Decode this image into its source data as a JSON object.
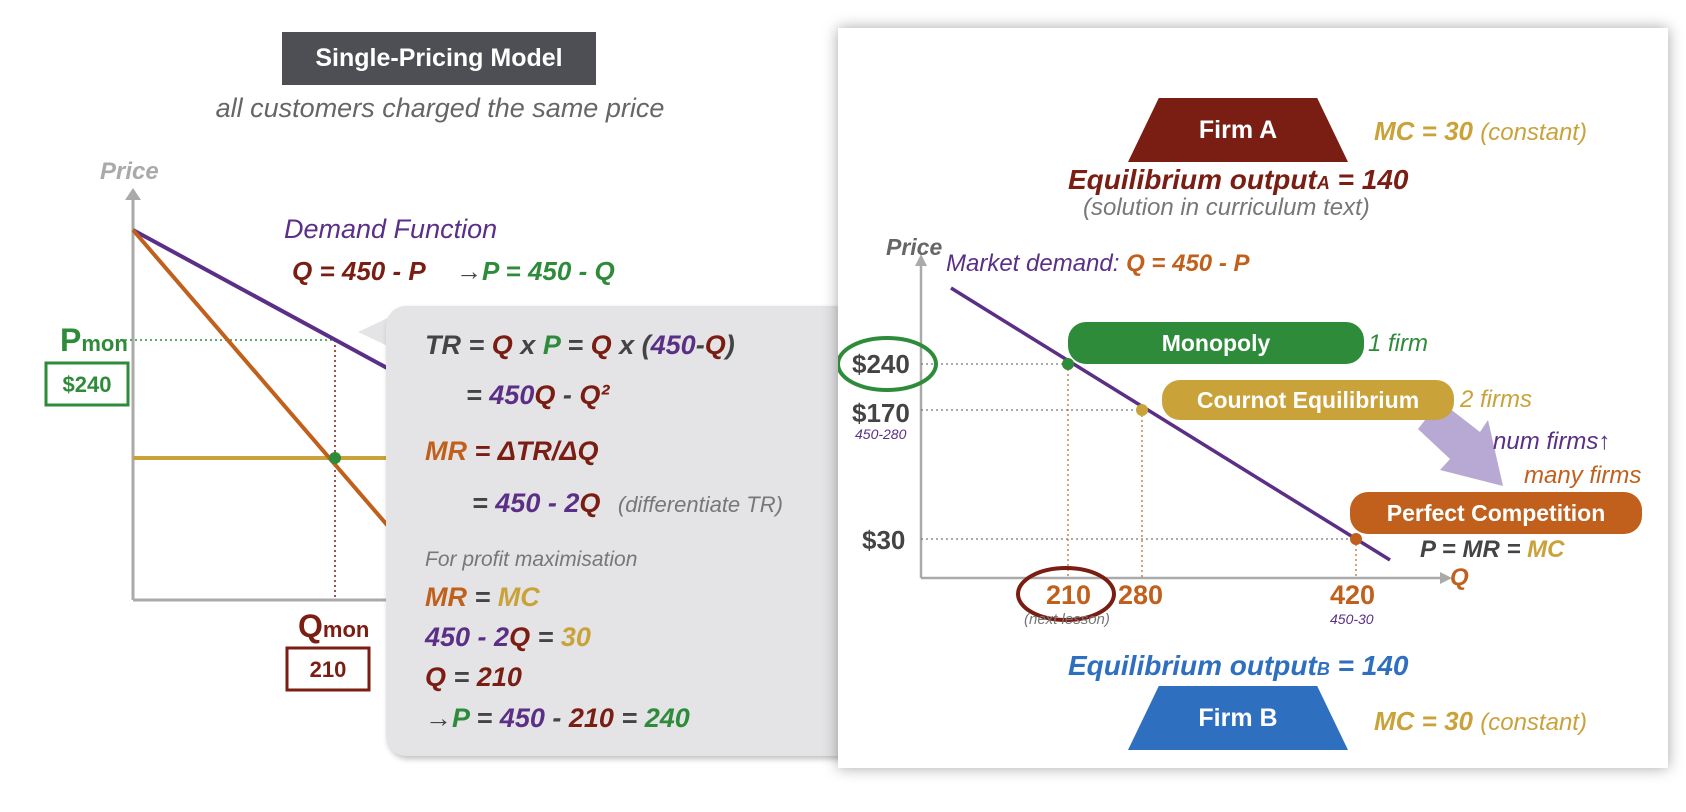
{
  "left": {
    "title": "Single-Pricing Model",
    "subtitle": "all customers charged the same price",
    "price_axis": "Price",
    "demand_heading": "Demand Function",
    "demand_eq1": "Q = 450 - P",
    "demand_arrow": "→",
    "demand_eq2": "P = 450 - Q",
    "pmon_letter": "P",
    "pmon_sub": "mon",
    "pmon_value": "$240",
    "qmon_letter": "Q",
    "qmon_sub": "mon",
    "qmon_value": "210"
  },
  "callout": {
    "tr_line": [
      "TR = ",
      "Q",
      " x ",
      "P",
      " = ",
      "Q",
      " x (",
      "450",
      "-",
      "Q",
      ")"
    ],
    "tr_line2": [
      "= ",
      "450",
      "Q",
      " - ",
      "Q²"
    ],
    "mr_line": [
      "MR",
      " = ΔTR/ΔQ"
    ],
    "mr_line2": [
      "= ",
      "450 - 2",
      "Q"
    ],
    "mr_note": "(differentiate TR)",
    "profit_note": "For profit maximisation",
    "cond1": [
      "MR",
      " = ",
      "MC"
    ],
    "cond2": [
      "450 - 2",
      "Q",
      " = ",
      "30"
    ],
    "cond3": [
      "Q",
      " = ",
      "210"
    ],
    "cond4": [
      "→",
      "P",
      " = ",
      "450",
      " - ",
      "210",
      " = ",
      "240"
    ]
  },
  "right": {
    "firm_a": "Firm A",
    "firm_b": "Firm B",
    "mc_a": "MC = 30",
    "mc_a_note": "(constant)",
    "mc_b": "MC = 30",
    "mc_b_note": "(constant)",
    "eq_a_prefix": "Equilibrium output",
    "eq_a_sub": "A",
    "eq_a_suffix": " = 140",
    "eq_a_note": "(solution in curriculum text)",
    "eq_b_prefix": "Equilibrium output",
    "eq_b_sub": "B",
    "eq_b_suffix": " = 140",
    "price_axis": "Price",
    "q_axis": "Q",
    "market_demand_label": "Market demand: ",
    "market_demand_eq": "Q = 450 - P",
    "price_240": "$240",
    "price_170": "$170",
    "price_170_note": "450-280",
    "price_30": "$30",
    "q_210": "210",
    "q_210_note": "(next lesson)",
    "q_280": "280",
    "q_420": "420",
    "q_420_note": "450-30",
    "monopoly": "Monopoly",
    "monopoly_note": "1 firm",
    "cournot": "Cournot Equilibrium",
    "cournot_note": "2 firms",
    "num_firms": "num firms↑",
    "many_firms": "many firms",
    "perfect": "Perfect Competition",
    "p_mr_mc": [
      "P = MR = ",
      "MC"
    ]
  },
  "colors": {
    "maroon": "#7a1d12",
    "green": "#2e8b3a",
    "purple": "#5b2f86",
    "orange": "#c0601c",
    "gold": "#c9a23a",
    "blue": "#2f6fc0"
  }
}
